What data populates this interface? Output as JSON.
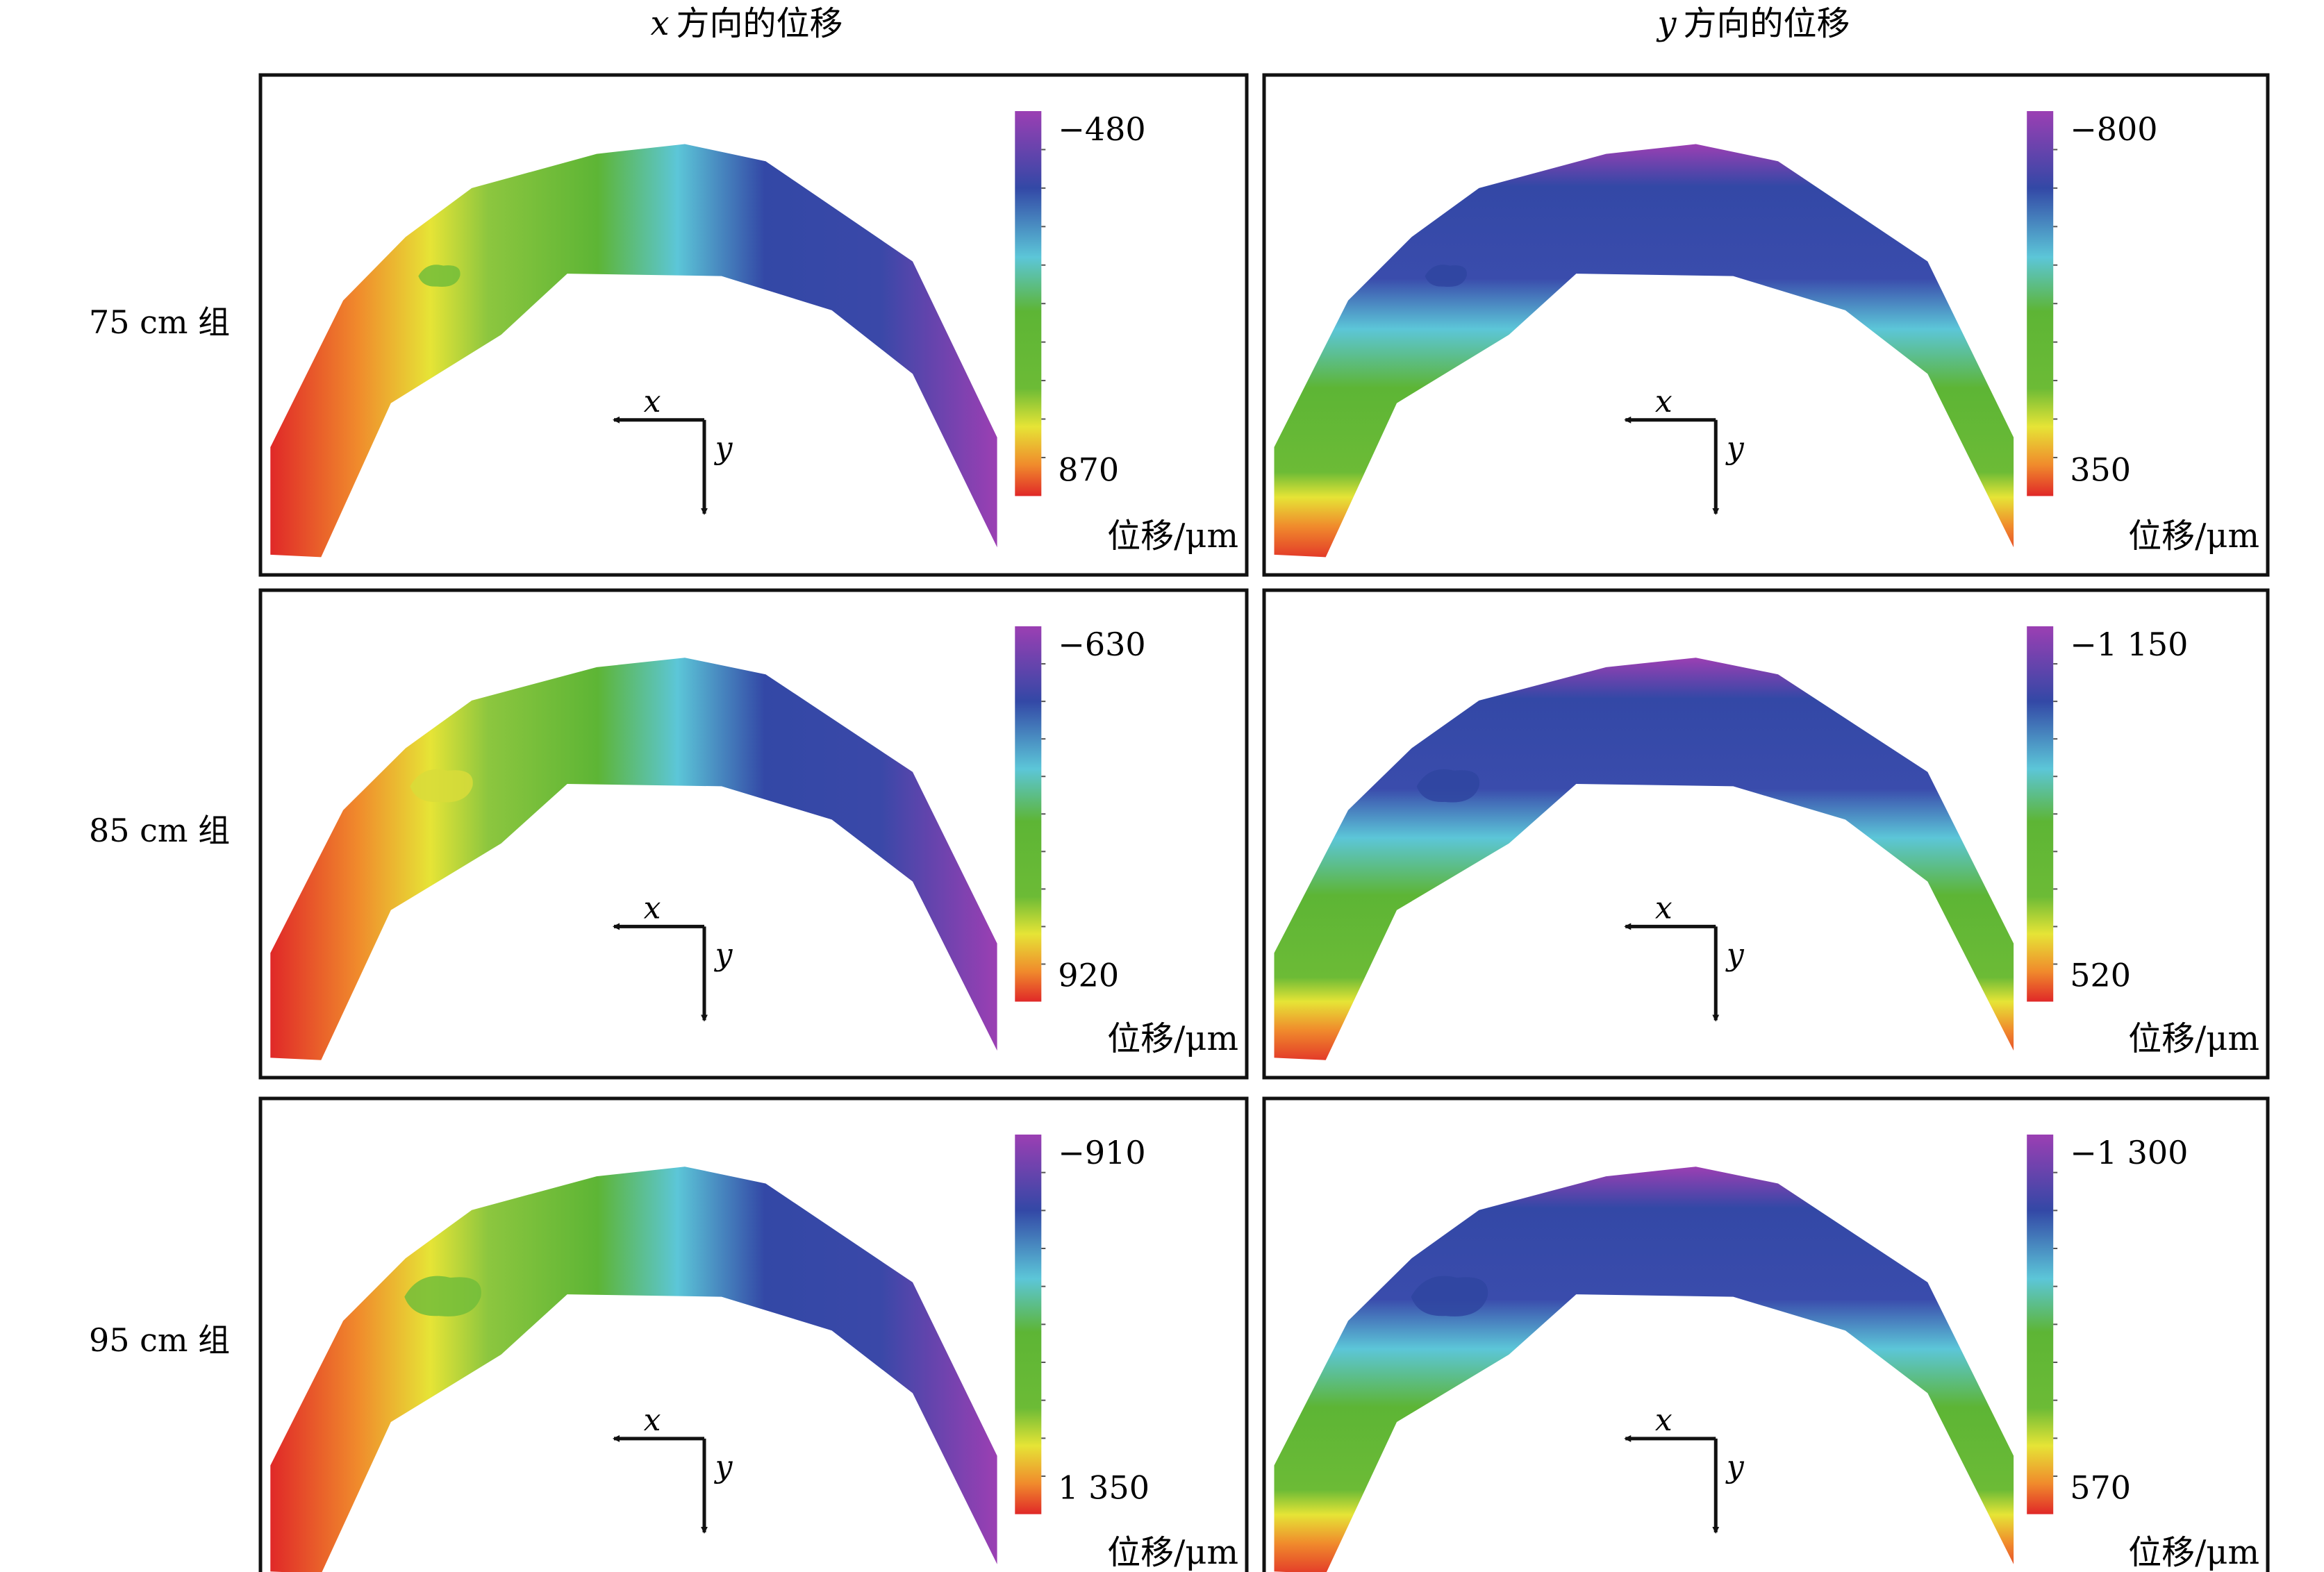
{
  "columns": [
    {
      "var": "x",
      "title": "方向的位移"
    },
    {
      "var": "y",
      "title": "方向的位移"
    }
  ],
  "rows": [
    {
      "label": "75 cm 组"
    },
    {
      "label": "85 cm 组"
    },
    {
      "label": "95 cm 组"
    }
  ],
  "panels": [
    {
      "row": 0,
      "col": 0,
      "max_label": "−480",
      "min_label": "870",
      "unit": "位移/μm"
    },
    {
      "row": 0,
      "col": 1,
      "max_label": "−800",
      "min_label": "350",
      "unit": "位移/μm"
    },
    {
      "row": 1,
      "col": 0,
      "max_label": "−630",
      "min_label": "920",
      "unit": "位移/μm"
    },
    {
      "row": 1,
      "col": 1,
      "max_label": "−1 150",
      "min_label": "520",
      "unit": "位移/μm"
    },
    {
      "row": 2,
      "col": 0,
      "max_label": "−910",
      "min_label": "1 350",
      "unit": "位移/μm"
    },
    {
      "row": 2,
      "col": 1,
      "max_label": "−1 300",
      "min_label": "570",
      "unit": "位移/μm"
    }
  ],
  "axes": {
    "x_label": "x",
    "y_label": "y"
  },
  "colors": {
    "purple": "#9b3fb3",
    "blue": "#3348a6",
    "cyan": "#5cc6d8",
    "green": "#5db535",
    "yellow": "#e6e436",
    "orange": "#f08a2c",
    "red": "#e02828"
  }
}
